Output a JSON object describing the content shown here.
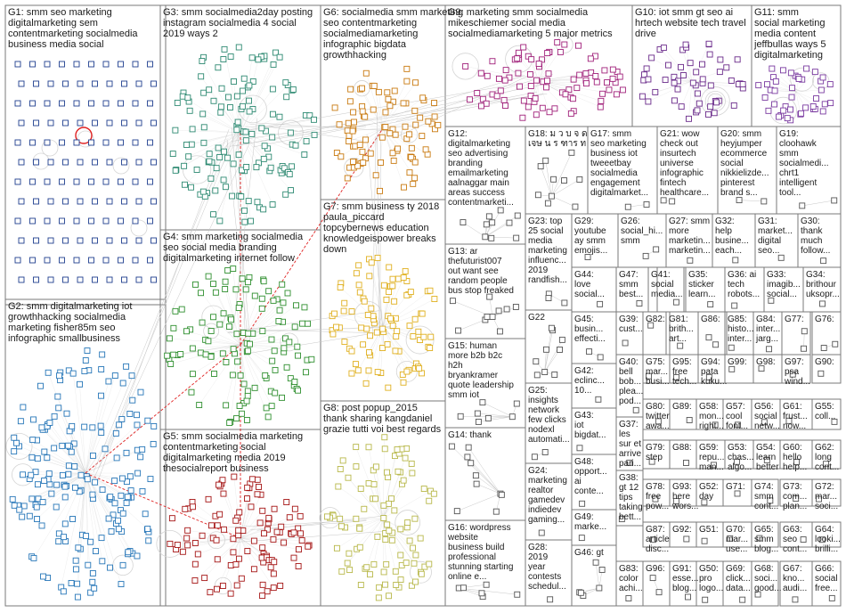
{
  "groups": [
    {
      "id": "G1",
      "color": "#1f3f8f",
      "lines": [
        "G1: smm seo marketing",
        "digitalmarketing sem",
        "contentmarketing socialmedia",
        "business media social"
      ]
    },
    {
      "id": "G2",
      "color": "#2676b8",
      "lines": [
        "G2: smm digitalmarketing iot",
        "growthhacking socialmedia",
        "marketing fisher85m seo",
        "infographic smallbusiness"
      ]
    },
    {
      "id": "G3",
      "color": "#2e8a72",
      "lines": [
        "G3: smm socialmedia2day posting",
        "instagram socialmedia 4 social",
        "2019 ways 2"
      ]
    },
    {
      "id": "G4",
      "color": "#2f8f2f",
      "lines": [
        "G4: smm marketing socialmedia",
        "seo social media branding",
        "digitalmarketing internet follow"
      ]
    },
    {
      "id": "G5",
      "color": "#a51515",
      "lines": [
        "G5: smm socialmedia marketing",
        "contentmarketing social",
        "digitalmarketing media 2019",
        "thesocialreport business"
      ]
    },
    {
      "id": "G6",
      "color": "#c97a10",
      "lines": [
        "G6: socialmedia smm marketing",
        "seo contentmarketing",
        "socialmediamarketing",
        "infographic bigdata",
        "growthhacking"
      ]
    },
    {
      "id": "G7",
      "color": "#e0b020",
      "lines": [
        "G7: smm business ty 2018",
        "paula_piccard",
        "topcybernews education",
        "knowledgeispower breaks",
        "down"
      ]
    },
    {
      "id": "G8",
      "color": "#b8b84a",
      "lines": [
        "G8: post popup_2015",
        "thank sharing kangdaniel",
        "grazie tutti voi best regards"
      ]
    },
    {
      "id": "G9",
      "color": "#a0207a",
      "lines": [
        "G9: marketing smm socialmedia",
        "mikeschiemer social media",
        "socialmediamarketing 5 major metrics"
      ]
    },
    {
      "id": "G10",
      "color": "#6a2a8a",
      "lines": [
        "G10: iot smm gt seo ai",
        "hrtech website tech travel",
        "drive"
      ]
    },
    {
      "id": "G11",
      "color": "#7a3aa0",
      "lines": [
        "G11: smm",
        "social marketing",
        "media content",
        "jeffbullas ways 5",
        "digitalmarketing"
      ]
    },
    {
      "id": "G12",
      "color": "#555555",
      "lines": [
        "G12:",
        "digitalmarketing",
        "seo advertising",
        "branding",
        "emailmarketing",
        "aalnaggar main",
        "areas success",
        "contentmarketi..."
      ]
    },
    {
      "id": "G13",
      "color": "#555555",
      "lines": [
        "G13: ar",
        "thefuturist007",
        "out want see",
        "random people",
        "bus stop freaked"
      ]
    },
    {
      "id": "G14",
      "color": "#555555",
      "lines": [
        "G14: thank"
      ]
    },
    {
      "id": "G15",
      "color": "#555555",
      "lines": [
        "G15: human",
        "more b2b b2c",
        "h2h",
        "bryankramer",
        "quote leadership",
        "smm iot"
      ]
    },
    {
      "id": "G16",
      "color": "#555555",
      "lines": [
        "G16: wordpress",
        "website",
        "business build",
        "professional",
        "stunning starting",
        "online e..."
      ]
    },
    {
      "id": "G17",
      "color": "#555555",
      "lines": [
        "G17: smm",
        "seo marketing",
        "business iot",
        "tweeetbay",
        "socialmedia",
        "engagement",
        "digitalmarket..."
      ]
    },
    {
      "id": "G18",
      "color": "#555555",
      "lines": [
        "G18: ม ว บ จ ด",
        "เจษ น ร ฑาร ท"
      ]
    },
    {
      "id": "G19",
      "color": "#555555",
      "lines": [
        "G19:",
        "cloohawk",
        "smm",
        "socialmedi...",
        "chrt1",
        "intelligent",
        "tool..."
      ]
    },
    {
      "id": "G20",
      "color": "#555555",
      "lines": [
        "G20: smm",
        "heyjumper",
        "ecommerce",
        "social",
        "nikkielizde...",
        "pinterest",
        "brand s..."
      ]
    },
    {
      "id": "G21",
      "color": "#555555",
      "lines": [
        "G21: wow",
        "check out",
        "insurtech",
        "universe",
        "infographic",
        "fintech",
        "healthcare..."
      ]
    },
    {
      "id": "G22",
      "color": "#555555",
      "lines": [
        "G22"
      ]
    },
    {
      "id": "G23",
      "color": "#555555",
      "lines": [
        "G23: top",
        "25 social",
        "media",
        "marketing",
        "influenc...",
        "2019",
        "randfish..."
      ]
    },
    {
      "id": "G24",
      "color": "#555555",
      "lines": [
        "G24:",
        "marketing",
        "realtor",
        "gamedev",
        "indiedev",
        "gaming..."
      ]
    },
    {
      "id": "G25",
      "color": "#555555",
      "lines": [
        "G25:",
        "insights",
        "network",
        "few clicks",
        "nodexl",
        "automati..."
      ]
    },
    {
      "id": "G26",
      "color": "#555555",
      "lines": [
        "G26:",
        "social_hi...",
        "smm"
      ]
    },
    {
      "id": "G27",
      "color": "#555555",
      "lines": [
        "G27: smm",
        "more",
        "marketin...",
        "marketin..."
      ]
    },
    {
      "id": "G28",
      "color": "#555555",
      "lines": [
        "G28:",
        "2019",
        "year",
        "contests",
        "schedul..."
      ]
    },
    {
      "id": "G29",
      "color": "#555555",
      "lines": [
        "G29:",
        "youtube",
        "ay smm",
        "emojis..."
      ]
    },
    {
      "id": "G30",
      "color": "#555555",
      "lines": [
        "G30:",
        "thank",
        "much",
        "follow..."
      ]
    },
    {
      "id": "G31",
      "color": "#555555",
      "lines": [
        "G31:",
        "market...",
        "digital",
        "seo..."
      ]
    },
    {
      "id": "G32",
      "color": "#555555",
      "lines": [
        "G32:",
        "help",
        "busine...",
        "each..."
      ]
    },
    {
      "id": "G33",
      "color": "#555555",
      "lines": [
        "G33:",
        "imagib...",
        "social..."
      ]
    },
    {
      "id": "G34",
      "color": "#555555",
      "lines": [
        "G34:",
        "brithour",
        "uksopr..."
      ]
    },
    {
      "id": "G35",
      "color": "#555555",
      "lines": [
        "G35:",
        "sticker",
        "learn..."
      ]
    },
    {
      "id": "G36",
      "color": "#555555",
      "lines": [
        "G36: ai",
        "tech",
        "robots..."
      ]
    },
    {
      "id": "G37",
      "color": "#555555",
      "lines": [
        "G37:",
        "les",
        "sur et",
        "arrive",
        "pari..."
      ]
    },
    {
      "id": "G38",
      "color": "#555555",
      "lines": [
        "G38:",
        "gt 12",
        "tips",
        "taking",
        "bett..."
      ]
    },
    {
      "id": "G39",
      "color": "#555555",
      "lines": [
        "G39:",
        "cust..."
      ]
    },
    {
      "id": "G40",
      "color": "#555555",
      "lines": [
        "G40:",
        "bell",
        "bob...",
        "plea...",
        "pod..."
      ]
    },
    {
      "id": "G41",
      "color": "#555555",
      "lines": [
        "G41:",
        "social",
        "media..."
      ]
    },
    {
      "id": "G42",
      "color": "#555555",
      "lines": [
        "G42:",
        "eclinc...",
        "10..."
      ]
    },
    {
      "id": "G43",
      "color": "#555555",
      "lines": [
        "G43:",
        "iot",
        "bigdat..."
      ]
    },
    {
      "id": "G44",
      "color": "#555555",
      "lines": [
        "G44:",
        "love",
        "social..."
      ]
    },
    {
      "id": "G45",
      "color": "#555555",
      "lines": [
        "G45:",
        "busin...",
        "effecti..."
      ]
    },
    {
      "id": "G46",
      "color": "#555555",
      "lines": [
        "G46: gt"
      ]
    },
    {
      "id": "G47",
      "color": "#555555",
      "lines": [
        "G47:",
        "smm",
        "best..."
      ]
    },
    {
      "id": "G48",
      "color": "#555555",
      "lines": [
        "G48:",
        "opport...",
        "ai",
        "conte..."
      ]
    },
    {
      "id": "G49",
      "color": "#555555",
      "lines": [
        "G49:",
        "marke..."
      ]
    },
    {
      "id": "G50",
      "color": "#555555",
      "lines": [
        "G50:",
        "pro",
        "logo..."
      ]
    },
    {
      "id": "G51",
      "color": "#555555",
      "lines": [
        "G51:"
      ]
    },
    {
      "id": "G52",
      "color": "#555555",
      "lines": [
        "G52:",
        "day"
      ]
    },
    {
      "id": "G53",
      "color": "#555555",
      "lines": [
        "G53:",
        "chas...",
        "algo..."
      ]
    },
    {
      "id": "G54",
      "color": "#555555",
      "lines": [
        "G54:",
        "learn",
        "better"
      ]
    },
    {
      "id": "G55",
      "color": "#555555",
      "lines": [
        "G55:",
        "coll..."
      ]
    },
    {
      "id": "G56",
      "color": "#555555",
      "lines": [
        "G56:",
        "social",
        "netw..."
      ]
    },
    {
      "id": "G57",
      "color": "#555555",
      "lines": [
        "G57:",
        "cool",
        "font..."
      ]
    },
    {
      "id": "G58",
      "color": "#555555",
      "lines": [
        "G58:",
        "mon...",
        "right..."
      ]
    },
    {
      "id": "G59",
      "color": "#555555",
      "lines": [
        "G59:",
        "repu...",
        "man..."
      ]
    },
    {
      "id": "G60",
      "color": "#555555",
      "lines": [
        "G60:",
        "hello",
        "help..."
      ]
    },
    {
      "id": "G61",
      "color": "#555555",
      "lines": [
        "G61:",
        "frust...",
        "now..."
      ]
    },
    {
      "id": "G62",
      "color": "#555555",
      "lines": [
        "G62:",
        "long",
        "cont..."
      ]
    },
    {
      "id": "G63",
      "color": "#555555",
      "lines": [
        "G63:",
        "seo",
        "cont..."
      ]
    },
    {
      "id": "G64",
      "color": "#555555",
      "lines": [
        "G64:",
        "looki...",
        "brilli..."
      ]
    },
    {
      "id": "G65",
      "color": "#555555",
      "lines": [
        "G65:",
        "smm",
        "blog..."
      ]
    },
    {
      "id": "G66",
      "color": "#555555",
      "lines": [
        "G66:",
        "social",
        "free..."
      ]
    },
    {
      "id": "G67",
      "color": "#555555",
      "lines": [
        "G67:",
        "kno...",
        "audi..."
      ]
    },
    {
      "id": "G68",
      "color": "#555555",
      "lines": [
        "G68:",
        "soci...",
        "good..."
      ]
    },
    {
      "id": "G69",
      "color": "#555555",
      "lines": [
        "G69:",
        "click...",
        "data..."
      ]
    },
    {
      "id": "G70",
      "color": "#555555",
      "lines": [
        "G70:",
        "mar...",
        "use..."
      ]
    },
    {
      "id": "G71",
      "color": "#555555",
      "lines": [
        "G71:"
      ]
    },
    {
      "id": "G72",
      "color": "#555555",
      "lines": [
        "G72:",
        "mar...",
        "soci..."
      ]
    },
    {
      "id": "G73",
      "color": "#555555",
      "lines": [
        "G73:",
        "com...",
        "plan..."
      ]
    },
    {
      "id": "G74",
      "color": "#555555",
      "lines": [
        "G74:",
        "smm",
        "cont..."
      ]
    },
    {
      "id": "G75",
      "color": "#555555",
      "lines": [
        "G75:",
        "mar...",
        "busi..."
      ]
    },
    {
      "id": "G76",
      "color": "#555555",
      "lines": [
        "G76:"
      ]
    },
    {
      "id": "G77",
      "color": "#555555",
      "lines": [
        "G77:"
      ]
    },
    {
      "id": "G78",
      "color": "#555555",
      "lines": [
        "G78:",
        "free",
        "pow..."
      ]
    },
    {
      "id": "G79",
      "color": "#555555",
      "lines": [
        "G79:",
        "step"
      ]
    },
    {
      "id": "G80",
      "color": "#555555",
      "lines": [
        "G80:",
        "twitter",
        "awa..."
      ]
    },
    {
      "id": "G81",
      "color": "#555555",
      "lines": [
        "G81:",
        "brith...",
        "art..."
      ]
    },
    {
      "id": "G82",
      "color": "#555555",
      "lines": [
        "G82:"
      ]
    },
    {
      "id": "G83",
      "color": "#555555",
      "lines": [
        "G83:",
        "color",
        "achi..."
      ]
    },
    {
      "id": "G84",
      "color": "#555555",
      "lines": [
        "G84:",
        "inter...",
        "jarg..."
      ]
    },
    {
      "id": "G85",
      "color": "#555555",
      "lines": [
        "G85:",
        "histo...",
        "inter..."
      ]
    },
    {
      "id": "G86",
      "color": "#555555",
      "lines": [
        "G86:"
      ]
    },
    {
      "id": "G87",
      "color": "#555555",
      "lines": [
        "G87:",
        "article",
        "disc..."
      ]
    },
    {
      "id": "G88",
      "color": "#555555",
      "lines": [
        "G88:"
      ]
    },
    {
      "id": "G89",
      "color": "#555555",
      "lines": [
        "G89:"
      ]
    },
    {
      "id": "G90",
      "color": "#555555",
      "lines": [
        "G90:"
      ]
    },
    {
      "id": "G91",
      "color": "#555555",
      "lines": [
        "G91:",
        "esse...",
        "blog..."
      ]
    },
    {
      "id": "G92",
      "color": "#555555",
      "lines": [
        "G92:"
      ]
    },
    {
      "id": "G93",
      "color": "#555555",
      "lines": [
        "G93:",
        "here",
        "wors..."
      ]
    },
    {
      "id": "G94",
      "color": "#555555",
      "lines": [
        "G94:",
        "pata",
        "kuku..."
      ]
    },
    {
      "id": "G95",
      "color": "#555555",
      "lines": [
        "G95:",
        "free",
        "tech..."
      ]
    },
    {
      "id": "G96",
      "color": "#555555",
      "lines": [
        "G96:"
      ]
    },
    {
      "id": "G97",
      "color": "#555555",
      "lines": [
        "G97:",
        "psa",
        "wind..."
      ]
    },
    {
      "id": "G98",
      "color": "#555555",
      "lines": [
        "G98:"
      ]
    },
    {
      "id": "G99",
      "color": "#555555",
      "lines": [
        "G99:"
      ]
    }
  ]
}
